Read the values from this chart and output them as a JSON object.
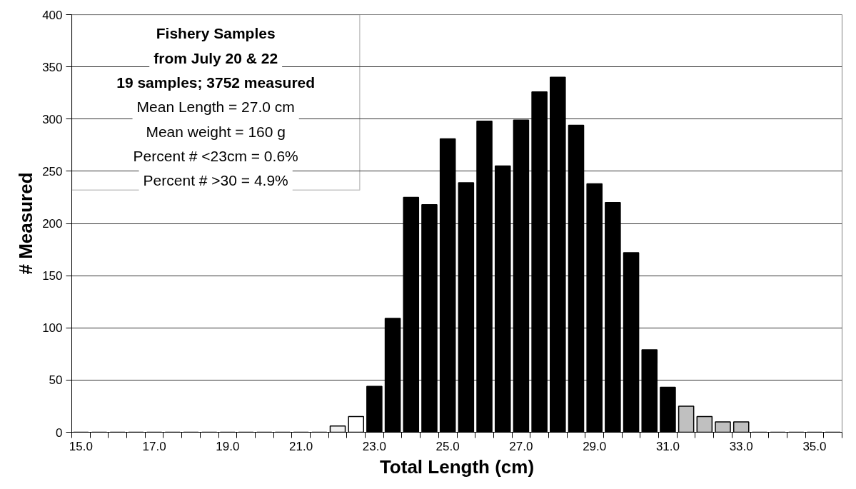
{
  "chart_data": {
    "type": "bar",
    "categories": [
      "15.0",
      null,
      null,
      null,
      "17.0",
      null,
      null,
      null,
      "19.0",
      null,
      null,
      null,
      "21.0",
      null,
      null,
      null,
      "23.0",
      null,
      null,
      null,
      "25.0",
      null,
      null,
      null,
      "27.0",
      null,
      null,
      null,
      "29.0",
      null,
      null,
      null,
      "31.0",
      null,
      null,
      null,
      "33.0",
      null,
      null,
      null,
      "35.0",
      null
    ],
    "values": [
      0,
      0,
      0,
      0,
      0,
      0,
      0,
      0,
      0,
      0,
      0,
      0,
      0,
      0,
      6,
      15,
      44,
      109,
      225,
      218,
      281,
      239,
      298,
      255,
      299,
      326,
      340,
      294,
      238,
      220,
      172,
      79,
      43,
      25,
      15,
      10,
      10,
      0,
      0,
      0,
      0,
      0
    ],
    "colors": [
      "#000000",
      "#000000",
      "#000000",
      "#000000",
      "#000000",
      "#000000",
      "#000000",
      "#000000",
      "#000000",
      "#000000",
      "#000000",
      "#000000",
      "#000000",
      "#000000",
      "#f0f0f0",
      "#ffffff",
      "#000000",
      "#000000",
      "#000000",
      "#000000",
      "#000000",
      "#000000",
      "#000000",
      "#000000",
      "#000000",
      "#000000",
      "#000000",
      "#000000",
      "#000000",
      "#000000",
      "#000000",
      "#000000",
      "#000000",
      "#c0c0c0",
      "#c0c0c0",
      "#c0c0c0",
      "#c0c0c0",
      "#000000",
      "#000000",
      "#000000",
      "#000000",
      "#000000"
    ],
    "ylim": [
      0,
      400
    ],
    "yticks": [
      0,
      50,
      100,
      150,
      200,
      250,
      300,
      350,
      400
    ],
    "grid": "y",
    "xlabel": "Total Length (cm)",
    "ylabel": "# Measured",
    "annotations": [
      "Fishery Samples",
      "from July 20 & 22",
      "19 samples; 3752 measured",
      "Mean Length = 27.0 cm",
      "Mean weight = 160 g",
      "Percent # <23cm = 0.6%",
      "Percent # >30 = 4.9%"
    ]
  }
}
